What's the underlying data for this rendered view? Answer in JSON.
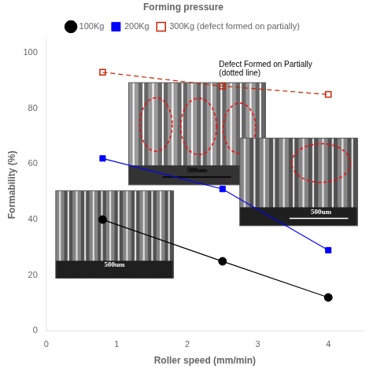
{
  "chart_data": {
    "type": "line",
    "xlabel": "Roller speed (mm/min)",
    "ylabel": "Formability (%)",
    "legend_title": "Forming pressure",
    "legend": "top",
    "x": [
      0.8,
      2.5,
      4.0
    ],
    "series": [
      {
        "name": "100Kg",
        "color": "black",
        "marker": "circle",
        "line_style": "solid",
        "values": [
          40,
          25,
          12
        ]
      },
      {
        "name": "200Kg",
        "color": "blue",
        "marker": "square",
        "line_style": "solid",
        "values": [
          62,
          51,
          29
        ]
      },
      {
        "name": "300Kg (defect formed on partially)",
        "color": "#cc2200",
        "marker": "open_square",
        "line_style": "dashed",
        "values": [
          93,
          88,
          85
        ]
      }
    ],
    "annotations": [
      {
        "text": "Defect Formed on Partially\n(dotted line)",
        "x": 2.45,
        "y": 97
      }
    ],
    "inset_labels": [
      "500um",
      "500um",
      "500um"
    ],
    "xlim": [
      0,
      4.5
    ],
    "ylim": [
      0,
      105
    ],
    "xticks": [
      0,
      1,
      2,
      3,
      4
    ],
    "yticks": [
      0,
      20,
      40,
      60,
      80,
      100
    ],
    "grid": false
  }
}
